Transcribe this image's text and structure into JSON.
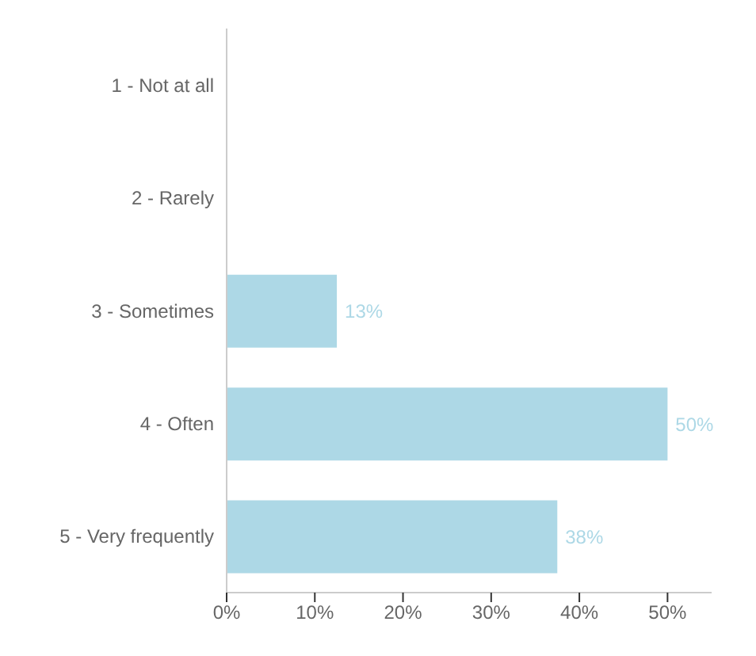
{
  "chart_data": {
    "type": "bar",
    "orientation": "horizontal",
    "categories": [
      "1 - Not at all",
      "2 - Rarely",
      "3 - Sometimes",
      "4 - Often",
      "5 - Very frequently"
    ],
    "values": [
      0,
      0,
      12.5,
      50,
      37.5
    ],
    "value_labels": [
      null,
      null,
      "13%",
      "50%",
      "38%"
    ],
    "color": "#add8e6",
    "xlim": [
      0,
      55
    ],
    "xticks": [
      {
        "value": 0,
        "label": "0%"
      },
      {
        "value": 10,
        "label": "10%"
      },
      {
        "value": 20,
        "label": "20%"
      },
      {
        "value": 30,
        "label": "30%"
      },
      {
        "value": 40,
        "label": "40%"
      },
      {
        "value": 50,
        "label": "50%"
      }
    ],
    "grid": false,
    "legend": false
  }
}
